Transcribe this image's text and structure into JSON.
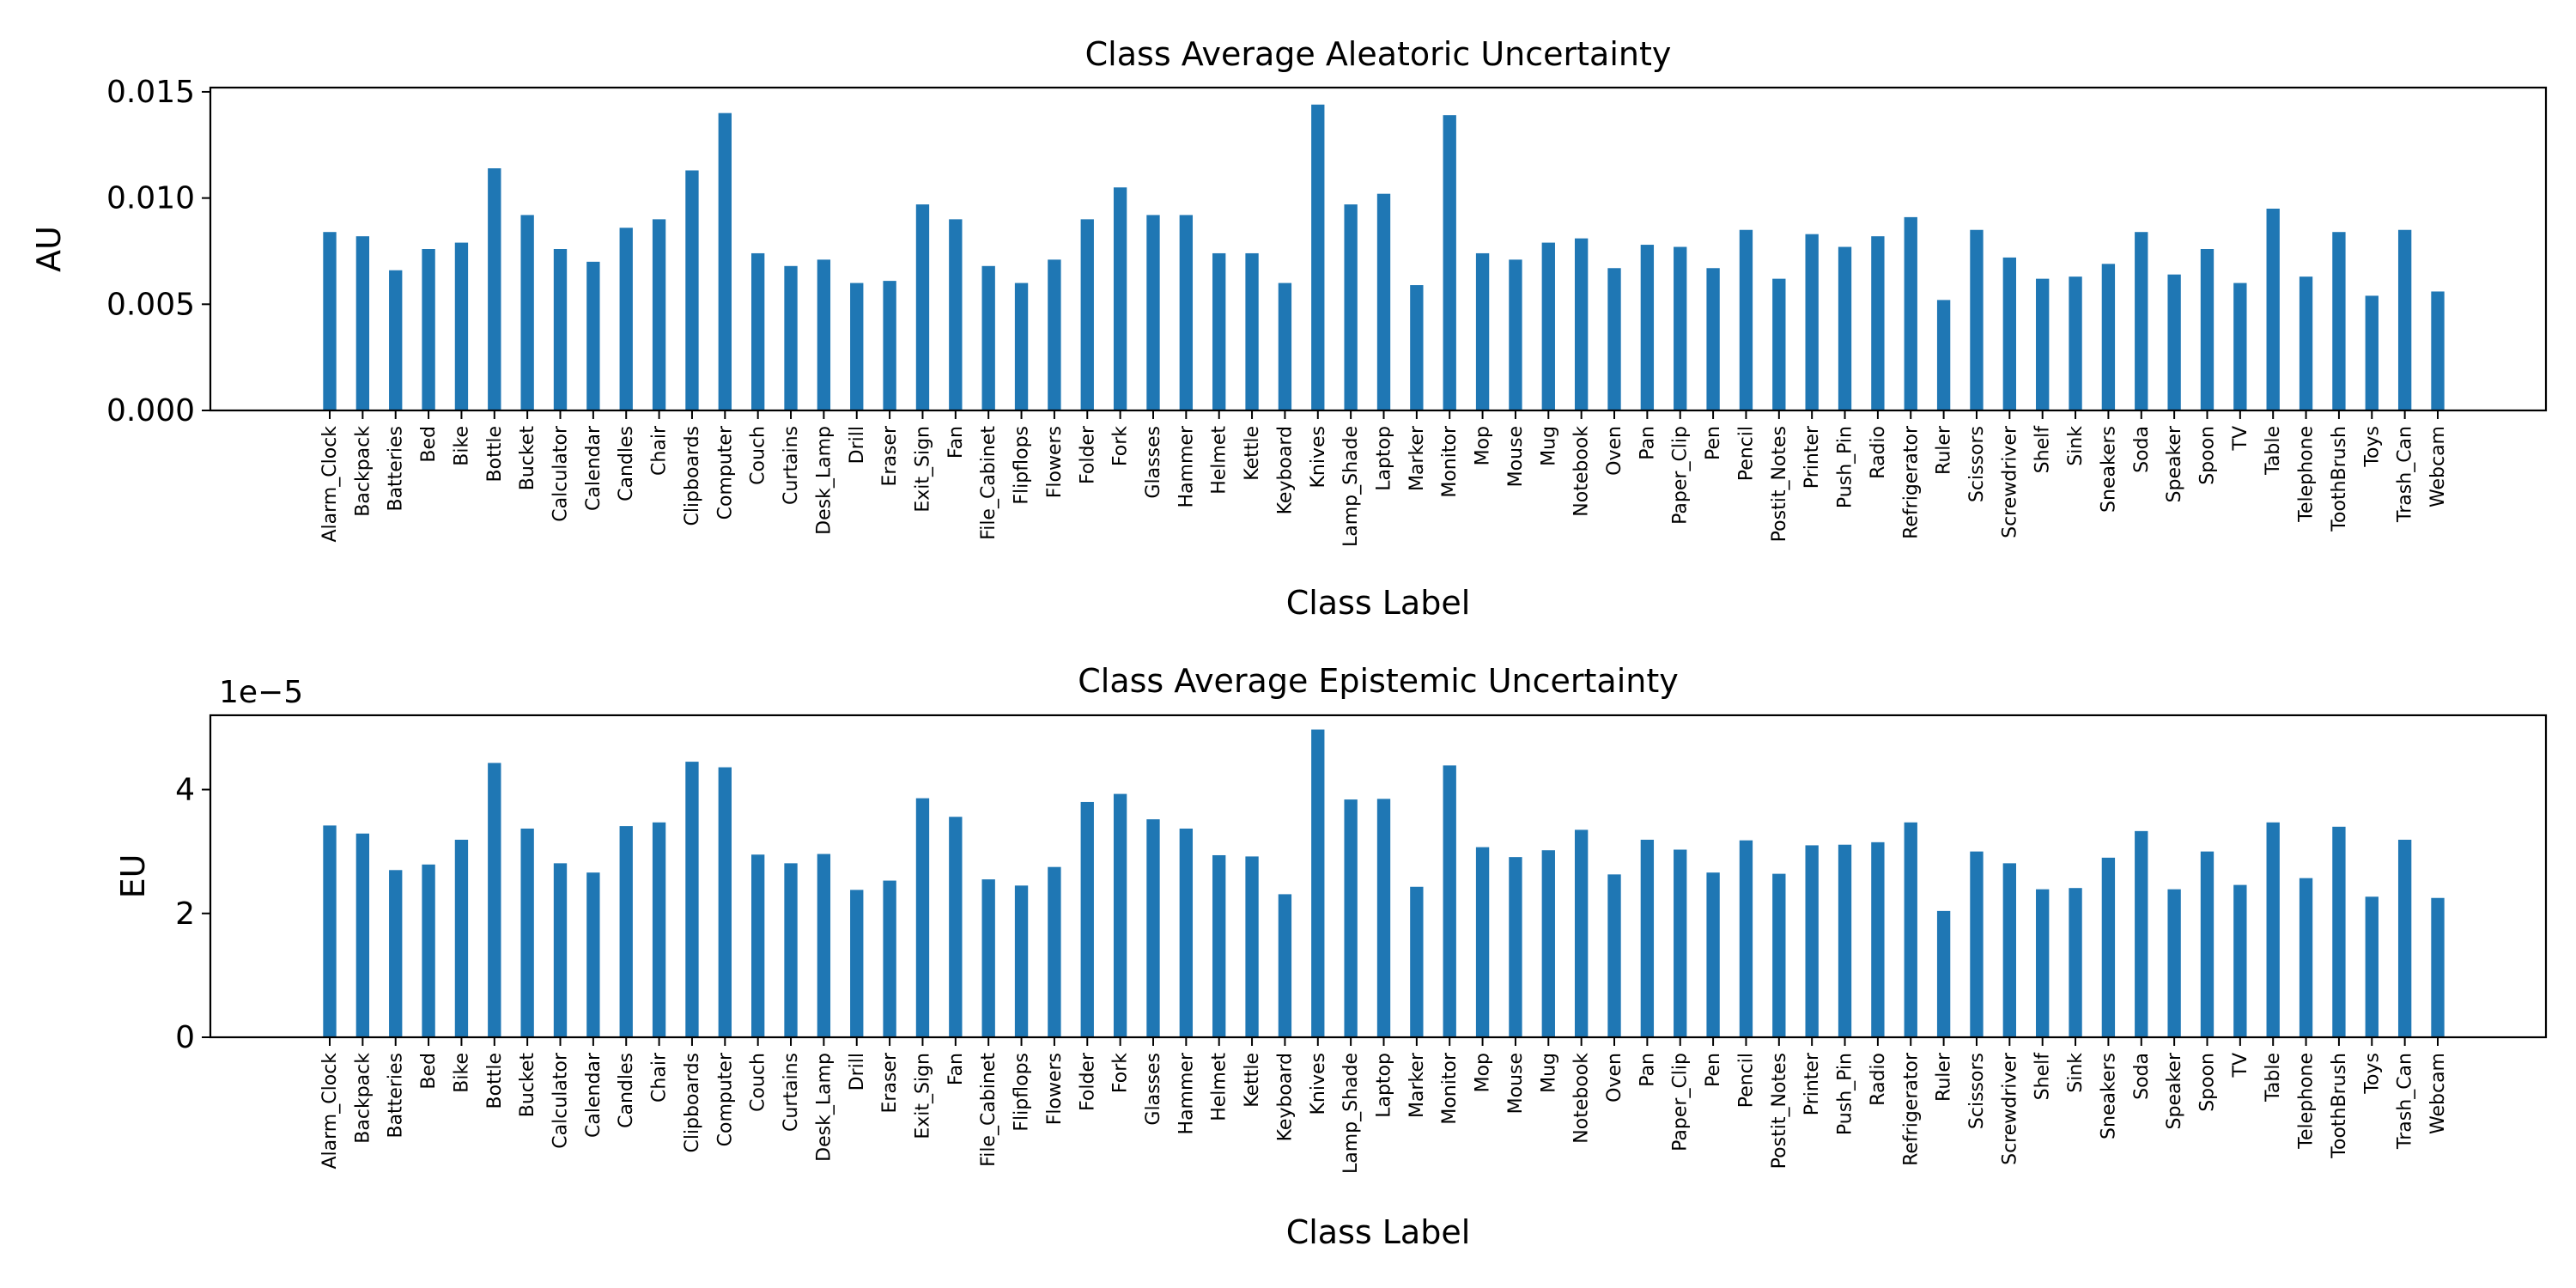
{
  "chart_data": [
    {
      "type": "bar",
      "title": "Class Average Aleatoric Uncertainty",
      "xlabel": "Class Label",
      "ylabel": "AU",
      "ylim": [
        0,
        0.0152
      ],
      "yticks": [
        0,
        0.005,
        0.01,
        0.015
      ],
      "ytick_labels": [
        "0.000",
        "0.005",
        "0.010",
        "0.015"
      ],
      "offset_text": "",
      "bar_color": "#1f77b4",
      "categories": [
        "Alarm_Clock",
        "Backpack",
        "Batteries",
        "Bed",
        "Bike",
        "Bottle",
        "Bucket",
        "Calculator",
        "Calendar",
        "Candles",
        "Chair",
        "Clipboards",
        "Computer",
        "Couch",
        "Curtains",
        "Desk_Lamp",
        "Drill",
        "Eraser",
        "Exit_Sign",
        "Fan",
        "File_Cabinet",
        "Flipflops",
        "Flowers",
        "Folder",
        "Fork",
        "Glasses",
        "Hammer",
        "Helmet",
        "Kettle",
        "Keyboard",
        "Knives",
        "Lamp_Shade",
        "Laptop",
        "Marker",
        "Monitor",
        "Mop",
        "Mouse",
        "Mug",
        "Notebook",
        "Oven",
        "Pan",
        "Paper_Clip",
        "Pen",
        "Pencil",
        "Postit_Notes",
        "Printer",
        "Push_Pin",
        "Radio",
        "Refrigerator",
        "Ruler",
        "Scissors",
        "Screwdriver",
        "Shelf",
        "Sink",
        "Sneakers",
        "Soda",
        "Speaker",
        "Spoon",
        "TV",
        "Table",
        "Telephone",
        "ToothBrush",
        "Toys",
        "Trash_Can",
        "Webcam"
      ],
      "values": [
        0.0084,
        0.0082,
        0.0066,
        0.0076,
        0.0079,
        0.0114,
        0.0092,
        0.0076,
        0.007,
        0.0086,
        0.009,
        0.0113,
        0.014,
        0.0074,
        0.0068,
        0.0071,
        0.006,
        0.0061,
        0.0097,
        0.009,
        0.0068,
        0.006,
        0.0071,
        0.009,
        0.0105,
        0.0092,
        0.0092,
        0.0074,
        0.0074,
        0.006,
        0.0144,
        0.0097,
        0.0102,
        0.0059,
        0.0139,
        0.0074,
        0.0071,
        0.0079,
        0.0081,
        0.0067,
        0.0078,
        0.0077,
        0.0067,
        0.0085,
        0.0062,
        0.0083,
        0.0077,
        0.0082,
        0.0091,
        0.0052,
        0.0085,
        0.0072,
        0.0062,
        0.0063,
        0.0069,
        0.0084,
        0.0064,
        0.0076,
        0.006,
        0.0095,
        0.0063,
        0.0084,
        0.0054,
        0.0085,
        0.0056
      ]
    },
    {
      "type": "bar",
      "title": "Class Average Epistemic Uncertainty",
      "xlabel": "Class Label",
      "ylabel": "EU",
      "ylim": [
        0,
        5.2
      ],
      "yticks": [
        0,
        2,
        4
      ],
      "ytick_labels": [
        "0",
        "2",
        "4"
      ],
      "offset_text": "1e−5",
      "bar_color": "#1f77b4",
      "categories": [
        "Alarm_Clock",
        "Backpack",
        "Batteries",
        "Bed",
        "Bike",
        "Bottle",
        "Bucket",
        "Calculator",
        "Calendar",
        "Candles",
        "Chair",
        "Clipboards",
        "Computer",
        "Couch",
        "Curtains",
        "Desk_Lamp",
        "Drill",
        "Eraser",
        "Exit_Sign",
        "Fan",
        "File_Cabinet",
        "Flipflops",
        "Flowers",
        "Folder",
        "Fork",
        "Glasses",
        "Hammer",
        "Helmet",
        "Kettle",
        "Keyboard",
        "Knives",
        "Lamp_Shade",
        "Laptop",
        "Marker",
        "Monitor",
        "Mop",
        "Mouse",
        "Mug",
        "Notebook",
        "Oven",
        "Pan",
        "Paper_Clip",
        "Pen",
        "Pencil",
        "Postit_Notes",
        "Printer",
        "Push_Pin",
        "Radio",
        "Refrigerator",
        "Ruler",
        "Scissors",
        "Screwdriver",
        "Shelf",
        "Sink",
        "Sneakers",
        "Soda",
        "Speaker",
        "Spoon",
        "TV",
        "Table",
        "Telephone",
        "ToothBrush",
        "Toys",
        "Trash_Can",
        "Webcam"
      ],
      "values": [
        3.42,
        3.29,
        2.7,
        2.79,
        3.19,
        4.43,
        3.37,
        2.81,
        2.66,
        3.41,
        3.47,
        4.45,
        4.36,
        2.95,
        2.81,
        2.96,
        2.38,
        2.53,
        3.86,
        3.56,
        2.55,
        2.45,
        2.75,
        3.8,
        3.93,
        3.52,
        3.37,
        2.94,
        2.92,
        2.31,
        4.97,
        3.84,
        3.85,
        2.43,
        4.39,
        3.07,
        2.91,
        3.02,
        3.35,
        2.63,
        3.19,
        3.03,
        2.66,
        3.18,
        2.64,
        3.1,
        3.11,
        3.15,
        3.47,
        2.04,
        3.0,
        2.81,
        2.39,
        2.41,
        2.9,
        3.33,
        2.39,
        3.0,
        2.46,
        3.47,
        2.57,
        3.4,
        2.27,
        3.19,
        2.25
      ]
    }
  ]
}
